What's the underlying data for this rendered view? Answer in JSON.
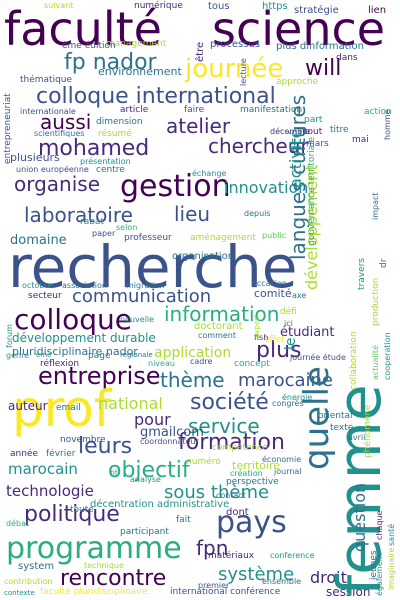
{
  "palette": {
    "c0": "#440154",
    "c1": "#472a7a",
    "c2": "#3b528b",
    "c3": "#2c728e",
    "c4": "#21918c",
    "c5": "#28ae80",
    "c6": "#5ec962",
    "c7": "#addc30",
    "c8": "#fde725"
  },
  "words": [
    {
      "t": "faculté",
      "c": "c0"
    },
    {
      "t": "science",
      "c": "c0"
    },
    {
      "t": "fp nador",
      "c": "c3"
    },
    {
      "t": "journée",
      "c": "c8"
    },
    {
      "t": "will",
      "c": "c0"
    },
    {
      "t": "colloque international",
      "c": "c2"
    },
    {
      "t": "aussi",
      "c": "c0"
    },
    {
      "t": "atelier",
      "c": "c1"
    },
    {
      "t": "chercheur",
      "c": "c1"
    },
    {
      "t": "mohamed",
      "c": "c1"
    },
    {
      "t": "organise",
      "c": "c1"
    },
    {
      "t": "gestion",
      "c": "c0"
    },
    {
      "t": "laboratoire",
      "c": "c2"
    },
    {
      "t": "lieu",
      "c": "c2"
    },
    {
      "t": "innovation",
      "c": "c4"
    },
    {
      "t": "domaine",
      "c": "c3"
    },
    {
      "t": "recherche",
      "c": "c2"
    },
    {
      "t": "communication",
      "c": "c2"
    },
    {
      "t": "information",
      "c": "c5"
    },
    {
      "t": "colloque",
      "c": "c0"
    },
    {
      "t": "développement durable",
      "c": "c4"
    },
    {
      "t": "pluridisciplinaire nador",
      "c": "c3"
    },
    {
      "t": "entreprise",
      "c": "c0"
    },
    {
      "t": "plus",
      "c": "c1"
    },
    {
      "t": "prof",
      "c": "c8"
    },
    {
      "t": "thème",
      "c": "c3"
    },
    {
      "t": "marocaine",
      "c": "c2"
    },
    {
      "t": "société",
      "c": "c2"
    },
    {
      "t": "national",
      "c": "c7"
    },
    {
      "t": "auteur",
      "c": "c1"
    },
    {
      "t": "service",
      "c": "c4"
    },
    {
      "t": "pour",
      "c": "c1"
    },
    {
      "t": "formation",
      "c": "c1"
    },
    {
      "t": "leurs",
      "c": "c2"
    },
    {
      "t": "gmailcom",
      "c": "c2"
    },
    {
      "t": "objectif",
      "c": "c5"
    },
    {
      "t": "marocain",
      "c": "c4"
    },
    {
      "t": "technologie",
      "c": "c1"
    },
    {
      "t": "sous thème",
      "c": "c4"
    },
    {
      "t": "politique",
      "c": "c1"
    },
    {
      "t": "pays",
      "c": "c2"
    },
    {
      "t": "programme",
      "c": "c5"
    },
    {
      "t": "fpn",
      "c": "c1"
    },
    {
      "t": "rencontre",
      "c": "c0"
    },
    {
      "t": "système",
      "c": "c4"
    },
    {
      "t": "droit",
      "c": "c1"
    },
    {
      "t": "session",
      "c": "c1"
    },
    {
      "t": "territoire",
      "c": "c7"
    },
    {
      "t": "collaboration",
      "c": "c7"
    },
    {
      "t": "entrepreneuriat",
      "c": "c2"
    },
    {
      "t": "internationale",
      "c": "c2"
    },
    {
      "t": "plusieurs",
      "c": "c2"
    },
    {
      "t": "question",
      "c": "c3"
    },
    {
      "t": "application",
      "c": "c7"
    },
    {
      "t": "étudiant",
      "c": "c1"
    },
    {
      "t": "comité",
      "c": "c2"
    },
    {
      "t": "organisation",
      "c": "c3"
    },
    {
      "t": "professeur",
      "c": "c2"
    },
    {
      "t": "public",
      "c": "c6"
    },
    {
      "t": "rabat",
      "c": "c4"
    },
    {
      "t": "selon",
      "c": "c5"
    },
    {
      "t": "centre",
      "c": "c3"
    },
    {
      "t": "mars",
      "c": "c2"
    },
    {
      "t": "tous",
      "c": "c2"
    },
    {
      "t": "https",
      "c": "c4"
    },
    {
      "t": "stratégie",
      "c": "c2"
    },
    {
      "t": "lien",
      "c": "c0"
    },
    {
      "t": "suivant",
      "c": "c7"
    },
    {
      "t": "numérique",
      "c": "c1"
    },
    {
      "t": "management",
      "c": "c7"
    },
    {
      "t": "processus",
      "c": "c2"
    },
    {
      "t": "plus dinformation",
      "c": "c3"
    },
    {
      "t": "ème édition",
      "c": "c2"
    },
    {
      "t": "environnement",
      "c": "c3"
    },
    {
      "t": "thématique",
      "c": "c2"
    },
    {
      "t": "approche",
      "c": "c7"
    },
    {
      "t": "manifestation",
      "c": "c3"
    },
    {
      "t": "action",
      "c": "c5"
    },
    {
      "t": "article",
      "c": "c1"
    },
    {
      "t": "faire",
      "c": "c2"
    },
    {
      "t": "scientifiques",
      "c": "c3"
    },
    {
      "t": "résumé",
      "c": "c7"
    },
    {
      "t": "titre",
      "c": "c3"
    },
    {
      "t": "décembre",
      "c": "c1"
    },
    {
      "t": "présentation",
      "c": "c4"
    },
    {
      "t": "union européenne",
      "c": "c2"
    },
    {
      "t": "échange",
      "c": "c4"
    },
    {
      "t": "paper",
      "c": "c2"
    },
    {
      "t": "aménagement",
      "c": "c7"
    },
    {
      "t": "depuis",
      "c": "c3"
    },
    {
      "t": "migration",
      "c": "c3"
    },
    {
      "t": "association",
      "c": "c3"
    },
    {
      "t": "octobre",
      "c": "c4"
    },
    {
      "t": "forum",
      "c": "c4"
    },
    {
      "t": "secteur",
      "c": "c1"
    },
    {
      "t": "nouvelle",
      "c": "c4"
    },
    {
      "t": "doctorant",
      "c": "c7"
    },
    {
      "t": "effet",
      "c": "c8"
    },
    {
      "t": "concept",
      "c": "c5"
    },
    {
      "t": "cadre",
      "c": "c2"
    },
    {
      "t": "réflexion",
      "c": "c1"
    },
    {
      "t": "genre",
      "c": "c4"
    },
    {
      "t": "page",
      "c": "c3"
    },
    {
      "t": "régionale",
      "c": "c3"
    },
    {
      "t": "niveau",
      "c": "c5"
    },
    {
      "t": "email",
      "c": "c3"
    },
    {
      "t": "novembre",
      "c": "c2"
    },
    {
      "t": "février",
      "c": "c3"
    },
    {
      "t": "année",
      "c": "c1"
    },
    {
      "t": "coordonnateur",
      "c": "c2"
    },
    {
      "t": "économie",
      "c": "c3"
    },
    {
      "t": "perspective",
      "c": "c3"
    },
    {
      "t": "décentration administrative",
      "c": "c4"
    },
    {
      "t": "participant",
      "c": "c3"
    },
    {
      "t": "contribution",
      "c": "c7"
    },
    {
      "t": "system",
      "c": "c3"
    },
    {
      "t": "faculté pluridisciplinaire",
      "c": "c8"
    },
    {
      "t": "international conférence",
      "c": "c2"
    },
    {
      "t": "contexte",
      "c": "c4"
    },
    {
      "t": "matériaux",
      "c": "c1"
    },
    {
      "t": "conference",
      "c": "c4"
    },
    {
      "t": "ensemble",
      "c": "c3"
    },
    {
      "t": "également",
      "c": "c4"
    },
    {
      "t": "chaque",
      "c": "c1"
    },
    {
      "t": "jeunes",
      "c": "c3"
    },
    {
      "t": "dont",
      "c": "c1"
    },
    {
      "t": "fait",
      "c": "c3"
    },
    {
      "t": "premier",
      "c": "c2"
    },
    {
      "t": "congrès",
      "c": "c3"
    },
    {
      "t": "création",
      "c": "c5"
    },
    {
      "t": "journal",
      "c": "c3"
    },
    {
      "t": "énergie",
      "c": "c4"
    },
    {
      "t": "oriental",
      "c": "c3"
    },
    {
      "t": "texte",
      "c": "c3"
    },
    {
      "t": "avril",
      "c": "c3"
    },
    {
      "t": "impact",
      "c": "c3"
    },
    {
      "t": "comment",
      "c": "c3"
    },
    {
      "t": "journée étude",
      "c": "c2"
    },
    {
      "t": "fish",
      "c": "c1"
    },
    {
      "t": "ici",
      "c": "c3"
    },
    {
      "t": "défi",
      "c": "c7"
    },
    {
      "t": "analyse",
      "c": "c4"
    },
    {
      "t": "débat",
      "c": "c5"
    },
    {
      "t": "actualité",
      "c": "c6"
    },
    {
      "t": "cooperation",
      "c": "c4"
    },
    {
      "t": "compétence",
      "c": "c7"
    },
    {
      "t": "technique",
      "c": "c7"
    },
    {
      "t": "rif",
      "c": "c4"
    },
    {
      "t": "phénomène",
      "c": "c7"
    },
    {
      "t": "toute",
      "c": "c3"
    },
    {
      "t": "être",
      "c": "c1"
    },
    {
      "t": "lecture",
      "c": "c2"
    },
    {
      "t": "acteur",
      "c": "c3"
    },
    {
      "t": "dimension",
      "c": "c3"
    },
    {
      "t": "mai",
      "c": "c1"
    },
    {
      "t": "part",
      "c": "c4"
    },
    {
      "t": "tout",
      "c": "c1"
    },
    {
      "t": "dans",
      "c": "c1"
    },
    {
      "t": "il",
      "c": "c1"
    },
    {
      "t": "autre",
      "c": "c4"
    },
    {
      "t": "projet",
      "c": "c4"
    },
    {
      "t": "conférence",
      "c": "c3"
    },
    {
      "t": "activité",
      "c": "c4"
    },
    {
      "t": "langues cultures",
      "c": "c3"
    },
    {
      "t": "développement",
      "c": "c7"
    },
    {
      "t": "le",
      "c": "c4"
    },
    {
      "t": "femme",
      "c": "c4"
    },
    {
      "t": "quelle",
      "c": "c3"
    },
    {
      "t": "cultures communication",
      "c": "c7"
    },
    {
      "t": "gouvernance territoriale",
      "c": "c5"
    },
    {
      "t": "travers",
      "c": "c4"
    },
    {
      "t": "production",
      "c": "c7"
    },
    {
      "t": "homme",
      "c": "c2"
    },
    {
      "t": "axe",
      "c": "c3"
    },
    {
      "t": "occasion",
      "c": "c3"
    },
    {
      "t": "imaginaire",
      "c": "c7"
    },
    {
      "t": "santé",
      "c": "c4"
    },
    {
      "t": "dr",
      "c": "c3"
    },
    {
      "t": "ème",
      "c": "c4"
    },
    {
      "t": "expert",
      "c": "c7"
    },
    {
      "t": "état",
      "c": "c7"
    },
    {
      "t": "numéro",
      "c": "c7"
    },
    {
      "t": "contact",
      "c": "c3"
    },
    {
      "t": "autres",
      "c": "c3"
    },
    {
      "t": "global",
      "c": "c5"
    },
    {
      "t": "pour plus",
      "c": "c3"
    },
    {
      "t": "régional",
      "c": "c3"
    }
  ]
}
